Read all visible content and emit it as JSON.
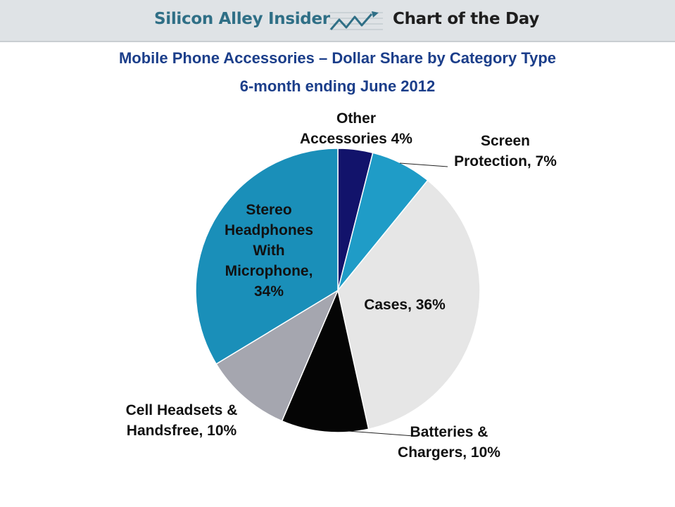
{
  "banner": {
    "brand": "Silicon Alley Insider",
    "tagline": "Chart of the Day",
    "icon": "trend-chart-icon",
    "background": "#dfe3e6",
    "brand_color": "#2f6f86"
  },
  "chart_data": {
    "type": "pie",
    "title": "Mobile Phone Accessories – Dollar Share by Category Type",
    "subtitle": "6-month ending June 2012",
    "slices": [
      {
        "name": "Other Accessories",
        "value": 4,
        "color": "#12136b",
        "label_lines": [
          "Other",
          "Accessories 4%"
        ]
      },
      {
        "name": "Screen Protection",
        "value": 7,
        "color": "#1f9cc7",
        "label_lines": [
          "Screen",
          "Protection,  7%"
        ]
      },
      {
        "name": "Cases",
        "value": 36,
        "color": "#e6e6e6",
        "label_lines": [
          "Cases, 36%"
        ]
      },
      {
        "name": "Batteries & Chargers",
        "value": 10,
        "color": "#050505",
        "label_lines": [
          "Batteries &",
          "Chargers, 10%"
        ]
      },
      {
        "name": "Cell Headsets & Handsfree",
        "value": 10,
        "color": "#a5a6af",
        "label_lines": [
          "Cell Headsets &",
          "Handsfree, 10%"
        ]
      },
      {
        "name": "Stereo Headphones With Microphone",
        "value": 34,
        "color": "#1a8fb9",
        "label_lines": [
          "Stereo",
          "Headphones",
          "With",
          "Microphone,",
          "34%"
        ]
      }
    ],
    "start_angle_deg": 0,
    "direction": "clockwise",
    "legend": "none"
  }
}
